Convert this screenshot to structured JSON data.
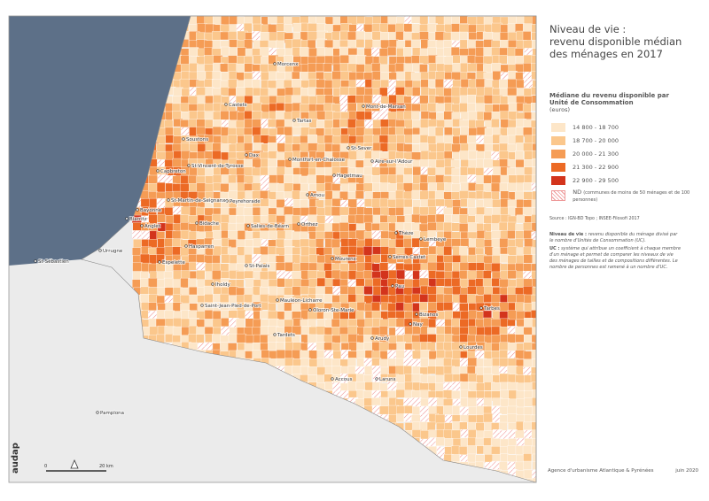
{
  "title": [
    "Niveau de vie :",
    "revenu disponible médian",
    "des ménages en 2017"
  ],
  "legend": {
    "title": "Médiane du revenu disponible par Unité de Consommation",
    "unit": "(euros)",
    "items": [
      {
        "label": "14 800 - 18 700",
        "color": "#fde6c8"
      },
      {
        "label": "18 700 - 20 000",
        "color": "#fbc78c"
      },
      {
        "label": "20 000 - 21 300",
        "color": "#f59c55"
      },
      {
        "label": "21 300 - 22 900",
        "color": "#ec6a25"
      },
      {
        "label": "22 900 - 29 500",
        "color": "#d3341c"
      }
    ],
    "nd": {
      "label": "ND",
      "text": "(communes de moins de 50 ménages et de 100 personnes)"
    }
  },
  "source": "Source : IGN-BD Topo ; INSEE-Filosofi 2017",
  "notes": [
    {
      "term": "Niveau de vie :",
      "text": "revenu disponible du ménage divisé par le nombre d'Unités de Consommation (UC)."
    },
    {
      "term": "UC :",
      "text": "système qui attribue un coefficient à chaque membre d'un ménage et permet de comparer les niveaux de vie des ménages de tailles et de compositions différentes. Le nombre de personnes est ramené à un nombre d'UC."
    }
  ],
  "footer": {
    "agency": "Agence d'urbanisme Atlantique & Pyrénées",
    "date": "juin 2020",
    "logo": "audap"
  },
  "scale": {
    "start": "0",
    "end": "20 km"
  },
  "places": [
    "Morcenx",
    "Castets",
    "Tartas",
    "Mont-de-Marsan",
    "Soustons",
    "Dax",
    "St-Sever",
    "Montfort-en-Chalosse",
    "Aire-sur-l'Adour",
    "Capbreton",
    "St-Vincent-de-Tyrosse",
    "Hagetmau",
    "Peyrehorade",
    "Amou",
    "Bayonne",
    "St-Martin-de-Seignanx",
    "Biarritz",
    "Anglet",
    "Bidache",
    "Salies-de-Béarn",
    "Orthez",
    "Thèze",
    "Lembeye",
    "Urrugne",
    "Hasparren",
    "Espelette",
    "Mourenx",
    "Serres-Castet",
    "Pau",
    "St-Palais",
    "Iholdy",
    "Mauléon-Licharre",
    "Saint-Jean-Pied-de-Port",
    "Oloron-Ste-Marie",
    "Tardets",
    "Arudy",
    "Nay",
    "Bizanos",
    "Tarbes",
    "Lourdes",
    "Accous",
    "Laruns",
    "Pamplona",
    "St-Sébastien"
  ]
}
